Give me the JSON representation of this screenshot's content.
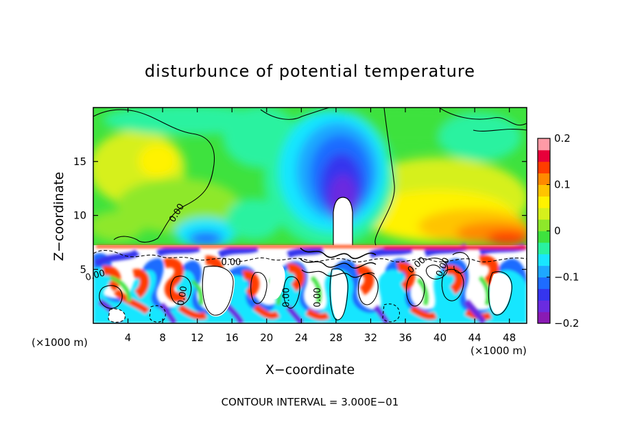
{
  "chart_data": {
    "type": "heatmap",
    "title": "disturbunce of potential temperature",
    "xlabel": "X−coordinate",
    "ylabel": "Z−coordinate",
    "x_unit_note": "(×1000 m)",
    "z_unit_note": "(×1000 m)",
    "xlim": [
      0,
      50
    ],
    "ylim": [
      0,
      20
    ],
    "x_ticks": [
      4,
      8,
      12,
      16,
      20,
      24,
      28,
      32,
      36,
      40,
      44,
      48
    ],
    "y_ticks": [
      5,
      10,
      15
    ],
    "colorbar": {
      "min": -0.2,
      "max": 0.2,
      "ticks": [
        "0.2",
        "0.1",
        "0",
        "−0.1",
        "−0.2"
      ],
      "tick_values": [
        0.2,
        0.1,
        0,
        -0.1,
        -0.2
      ],
      "colors": [
        "#8a1ab4",
        "#6a2be0",
        "#3535ee",
        "#1e6cff",
        "#1ea8ff",
        "#19e6ff",
        "#29f2a0",
        "#3ee23e",
        "#8ee82a",
        "#d6f01c",
        "#fff200",
        "#ffc400",
        "#ff8a00",
        "#ff3d00",
        "#e8003a",
        "#ff9aa6"
      ]
    },
    "contour_interval_note": "CONTOUR INTERVAL = 3.000E−01",
    "contour_labels": [
      {
        "text": "0.00",
        "x": 9.9,
        "z": 10.1,
        "angle": -58
      },
      {
        "text": "0.00",
        "x": 0.3,
        "z": 4.2,
        "angle": -15
      },
      {
        "text": "0.00",
        "x": 15.9,
        "z": 5.4,
        "angle": 0
      },
      {
        "text": "0.00",
        "x": 10.6,
        "z": 2.5,
        "angle": -80
      },
      {
        "text": "0.00",
        "x": 22.6,
        "z": 2.4,
        "angle": -90
      },
      {
        "text": "0.00",
        "x": 26.2,
        "z": 2.4,
        "angle": -90
      },
      {
        "text": "0.00",
        "x": 37.5,
        "z": 5.2,
        "angle": -40
      },
      {
        "text": "0.00",
        "x": 40.6,
        "z": 5.1,
        "angle": -65
      }
    ]
  }
}
